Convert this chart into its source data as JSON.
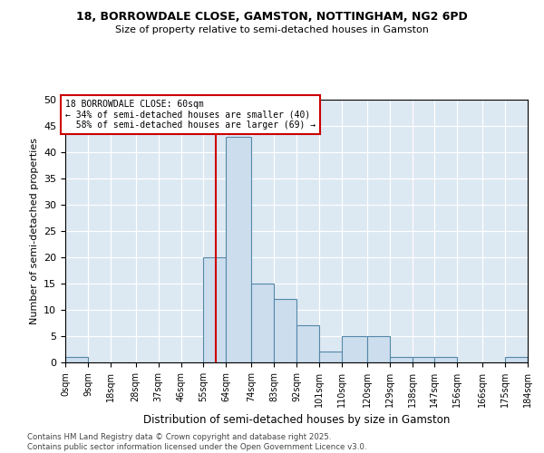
{
  "title1": "18, BORROWDALE CLOSE, GAMSTON, NOTTINGHAM, NG2 6PD",
  "title2": "Size of property relative to semi-detached houses in Gamston",
  "xlabel": "Distribution of semi-detached houses by size in Gamston",
  "ylabel": "Number of semi-detached properties",
  "footnote": "Contains HM Land Registry data © Crown copyright and database right 2025.\nContains public sector information licensed under the Open Government Licence v3.0.",
  "bin_edges": [
    0,
    9,
    18,
    28,
    37,
    46,
    55,
    64,
    74,
    83,
    92,
    101,
    110,
    120,
    129,
    138,
    147,
    156,
    166,
    175,
    184
  ],
  "bin_labels": [
    "0sqm",
    "9sqm",
    "18sqm",
    "28sqm",
    "37sqm",
    "46sqm",
    "55sqm",
    "64sqm",
    "74sqm",
    "83sqm",
    "92sqm",
    "101sqm",
    "110sqm",
    "120sqm",
    "129sqm",
    "138sqm",
    "147sqm",
    "156sqm",
    "166sqm",
    "175sqm",
    "184sqm"
  ],
  "counts": [
    1,
    0,
    0,
    0,
    0,
    0,
    20,
    43,
    15,
    12,
    7,
    2,
    5,
    5,
    1,
    1,
    1,
    0,
    0,
    1
  ],
  "property_size": 60,
  "property_label": "18 BORROWDALE CLOSE: 60sqm",
  "smaller_pct": 34,
  "smaller_count": 40,
  "larger_pct": 58,
  "larger_count": 69,
  "bar_facecolor": "#ccdded",
  "bar_edgecolor": "#5588aa",
  "line_color": "#cc0000",
  "annotation_box_edgecolor": "#cc0000",
  "grid_color": "#ffffff",
  "axes_bg_color": "#dce8f2",
  "ylim_max": 50,
  "ytick_step": 5
}
